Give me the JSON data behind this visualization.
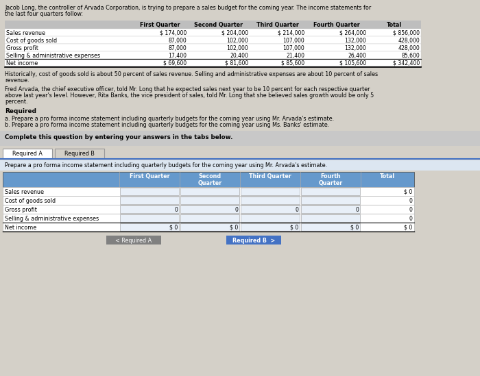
{
  "bg_color": "#d4d0c8",
  "white": "#ffffff",
  "intro_text_line1": "Jacob Long, the controller of Arvada Corporation, is trying to prepare a sales budget for the coming year. The income statements for",
  "intro_text_line2": "the last four quarters follow:",
  "table1_headers": [
    "",
    "First Quarter",
    "Second Quarter",
    "Third Quarter",
    "Fourth Quarter",
    "Total"
  ],
  "table1_rows": [
    [
      "Sales revenue",
      "$ 174,000",
      "$ 204,000",
      "$ 214,000",
      "$ 264,000",
      "$ 856,000"
    ],
    [
      "Cost of goods sold",
      "87,000",
      "102,000",
      "107,000",
      "132,000",
      "428,000"
    ],
    [
      "Gross profit",
      "87,000",
      "102,000",
      "107,000",
      "132,000",
      "428,000"
    ],
    [
      "Selling & administrative expenses",
      "17,400",
      "20,400",
      "21,400",
      "26,400",
      "85,600"
    ],
    [
      "Net income",
      "$ 69,600",
      "$ 81,600",
      "$ 85,600",
      "$ 105,600",
      "$ 342,400"
    ]
  ],
  "para1_line1": "Historically, cost of goods sold is about 50 percent of sales revenue. Selling and administrative expenses are about 10 percent of sales",
  "para1_line2": "revenue.",
  "para2_line1": "Fred Arvada, the chief executive officer, told Mr. Long that he expected sales next year to be 10 percent for each respective quarter",
  "para2_line2": "above last year's level. However, Rita Banks, the vice president of sales, told Mr. Long that she believed sales growth would be only 5",
  "para2_line3": "percent.",
  "required_label": "Required",
  "req_a": "a. Prepare a pro forma income statement including quarterly budgets for the coming year using Mr. Arvada's estimate.",
  "req_b": "b. Prepare a pro forma income statement including quarterly budgets for the coming year using Ms. Banks' estimate.",
  "complete_text": "Complete this question by entering your answers in the tabs below.",
  "tab_a": "Required A",
  "tab_b": "Required B",
  "prepare_text": "Prepare a pro forma income statement including quarterly budgets for the coming year using Mr. Arvada's estimate.",
  "table2_headers": [
    "",
    "First Quarter",
    "Second\nQuarter",
    "Third Quarter",
    "Fourth\nQuarter",
    "Total"
  ],
  "table2_rows": [
    [
      "Sales revenue",
      "",
      "",
      "",
      "",
      "$ 0"
    ],
    [
      "Cost of goods sold",
      "",
      "",
      "",
      "",
      "0"
    ],
    [
      "Gross profit",
      "0",
      "0",
      "0",
      "0",
      "0"
    ],
    [
      "Selling & administrative expenses",
      "",
      "",
      "",
      "",
      "0"
    ],
    [
      "Net income",
      "$ 0",
      "$ 0",
      "$ 0",
      "$ 0",
      "$ 0"
    ]
  ],
  "btn1_text": "< Required A",
  "btn2_text": "Required B  >",
  "header_gray": "#bebebe",
  "row_white": "#ffffff",
  "light_blue": "#dce6f1",
  "tab_blue_header": "#6699cc",
  "input_box_bg": "#e8eff8",
  "sep_line_color": "#4472c4",
  "btn_gray": "#808080",
  "btn_blue": "#4472c4"
}
